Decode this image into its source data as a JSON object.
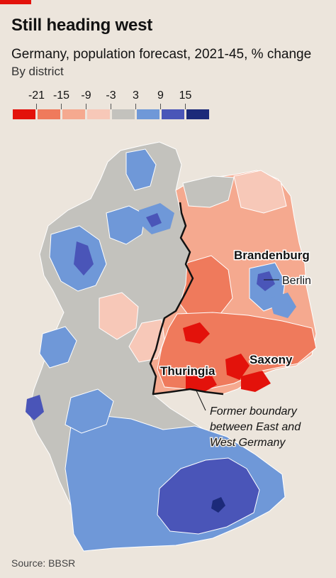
{
  "header": {
    "title": "Still heading west",
    "subtitle": "Germany, population forecast, 2021-45, % change",
    "subsubtitle": "By district"
  },
  "legend": {
    "ticks": [
      "-21",
      "-15",
      "-9",
      "-3",
      "3",
      "9",
      "15"
    ],
    "bins": [
      {
        "color": "#e3120b"
      },
      {
        "color": "#ef7a5c"
      },
      {
        "color": "#f5a98f"
      },
      {
        "color": "#f7c8b8"
      },
      {
        "color": "#c3c2bd"
      },
      {
        "color": "#6f98d8"
      },
      {
        "color": "#4a55b8"
      },
      {
        "color": "#1c2a7a"
      }
    ]
  },
  "labels": {
    "brandenburg": "Brandenburg",
    "berlin": "Berlin",
    "saxony": "Saxony",
    "thuringia": "Thuringia",
    "boundary_line1": "Former boundary",
    "boundary_line2": "between East and",
    "boundary_line3": "West Germany"
  },
  "source": "Source: BBSR"
}
